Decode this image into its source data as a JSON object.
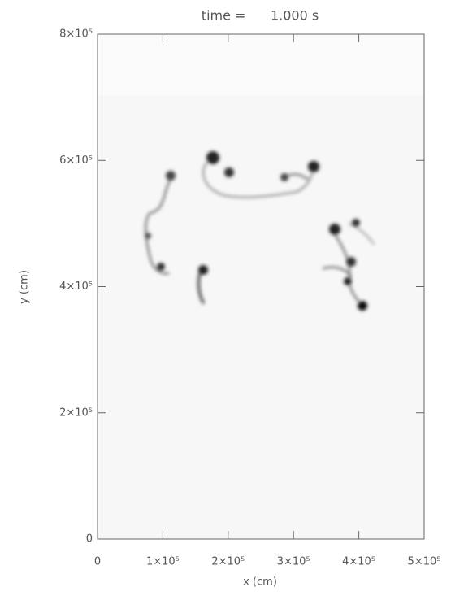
{
  "chart_data": {
    "type": "image",
    "title": "time =      1.000 s",
    "xlabel": "x (cm)",
    "ylabel": "y (cm)",
    "xlim": [
      0,
      500000
    ],
    "ylim": [
      0,
      800000
    ],
    "xticks": [
      0,
      {
        "value": 100000,
        "label": "1×10⁵"
      },
      {
        "value": 200000,
        "label": "2×10⁵"
      },
      {
        "value": 300000,
        "label": "3×10⁵"
      },
      {
        "value": 400000,
        "label": "4×10⁵"
      },
      {
        "value": 500000,
        "label": "5×10⁵"
      }
    ],
    "yticks": [
      0,
      {
        "value": 200000,
        "label": "2×10⁵"
      },
      {
        "value": 400000,
        "label": "4×10⁵"
      },
      {
        "value": 600000,
        "label": "6×10⁵"
      },
      {
        "value": 800000,
        "label": "8×10⁵"
      }
    ]
  }
}
